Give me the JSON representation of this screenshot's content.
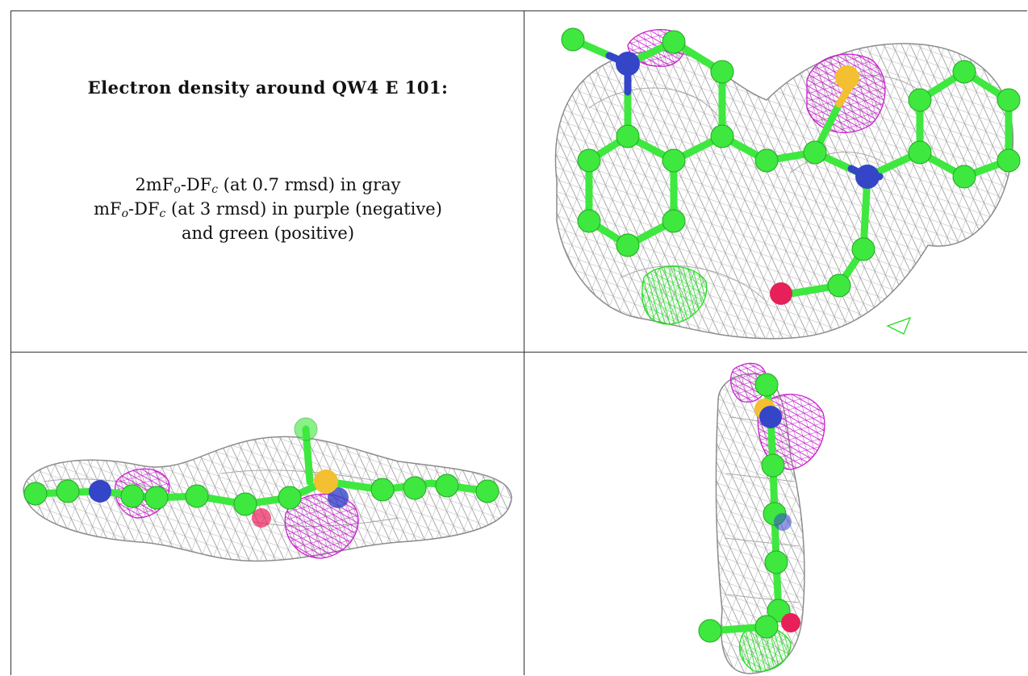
{
  "caption": {
    "title": "Electron density around QW4 E 101:",
    "line1": {
      "a": "2mF",
      "a_sub": "o",
      "b": "-DF",
      "b_sub": "c",
      "rest": " (at 0.7 rmsd) in gray"
    },
    "line2": {
      "a": "mF",
      "a_sub": "o",
      "b": "-DF",
      "b_sub": "c",
      "rest": " (at 3 rmsd) in purple (negative)"
    },
    "line3": "and green (positive)"
  },
  "colors": {
    "carbon": "#3ee83e",
    "nitrogen": "#3545c8",
    "oxygen": "#e8205a",
    "sulfur": "#f2c030",
    "mesh_gray": "#9a9a9a",
    "mesh_negative": "#c81ed0",
    "mesh_positive": "#22dd22"
  },
  "panels": [
    {
      "view": "top"
    },
    {
      "view": "side"
    },
    {
      "view": "end"
    }
  ]
}
